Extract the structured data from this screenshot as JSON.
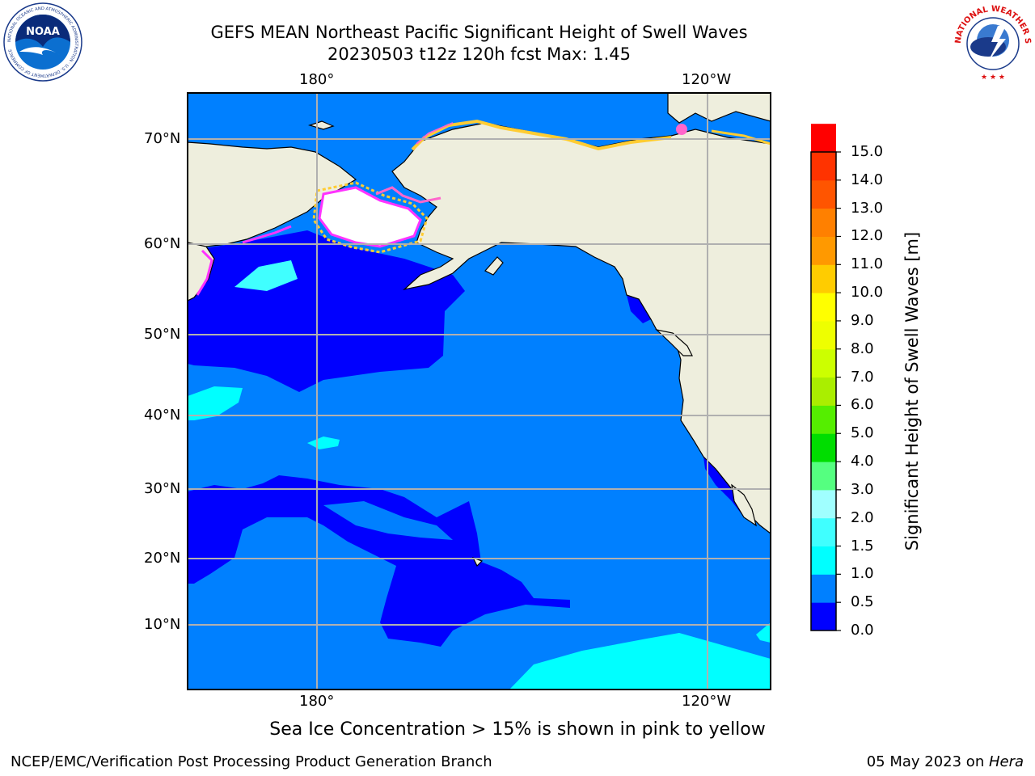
{
  "header": {
    "title_line1": "GEFS MEAN Northeast Pacific Significant Height of Swell Waves",
    "title_line2": "20230503 t12z 120h fcst   Max: 1.45"
  },
  "logos": {
    "noaa_text": "NOAA",
    "noaa_ring": "NATIONAL OCEANIC AND ATMOSPHERIC ADMINISTRATION · U.S. DEPARTMENT OF COMMERCE",
    "nws_ring": "NATIONAL WEATHER SERVICE"
  },
  "axes": {
    "lon_labels": [
      "180°",
      "120°W"
    ],
    "lat_labels": [
      "70°N",
      "60°N",
      "50°N",
      "40°N",
      "30°N",
      "20°N",
      "10°N"
    ]
  },
  "colorbar": {
    "title": "Significant Height of Swell Waves [m]",
    "ticks": [
      "15.0",
      "14.0",
      "13.0",
      "12.0",
      "11.0",
      "10.0",
      "9.0",
      "8.0",
      "7.0",
      "6.0",
      "5.0",
      "4.0",
      "3.0",
      "2.0",
      "1.5",
      "1.0",
      "0.5",
      "0.0"
    ],
    "colors": [
      "#0000ff",
      "#0080ff",
      "#00ffff",
      "#40ffff",
      "#a0ffff",
      "#55ff80",
      "#00dd00",
      "#55ee00",
      "#aaee00",
      "#ccff00",
      "#eeff00",
      "#ffff00",
      "#ffcc00",
      "#ff9900",
      "#ff8000",
      "#ff5500",
      "#ff3300",
      "#ff0000"
    ]
  },
  "colors": {
    "land": "#eeeedd",
    "ice": "#ffffff",
    "swell_0_05": "#0000ff",
    "swell_05_1": "#0080ff",
    "swell_1_15": "#00ffff",
    "swell_15_2": "#40ffff",
    "grid": "#b0b0b0",
    "ice_edge_pink": "#ff33ff",
    "ice_edge_yellow": "#ffcc33"
  },
  "note": "Sea Ice Concentration > 15% is shown in pink to yellow",
  "footer": {
    "left": "NCEP/EMC/Verification Post Processing Product Generation Branch",
    "date": "05 May 2023 on ",
    "machine": "Hera"
  }
}
